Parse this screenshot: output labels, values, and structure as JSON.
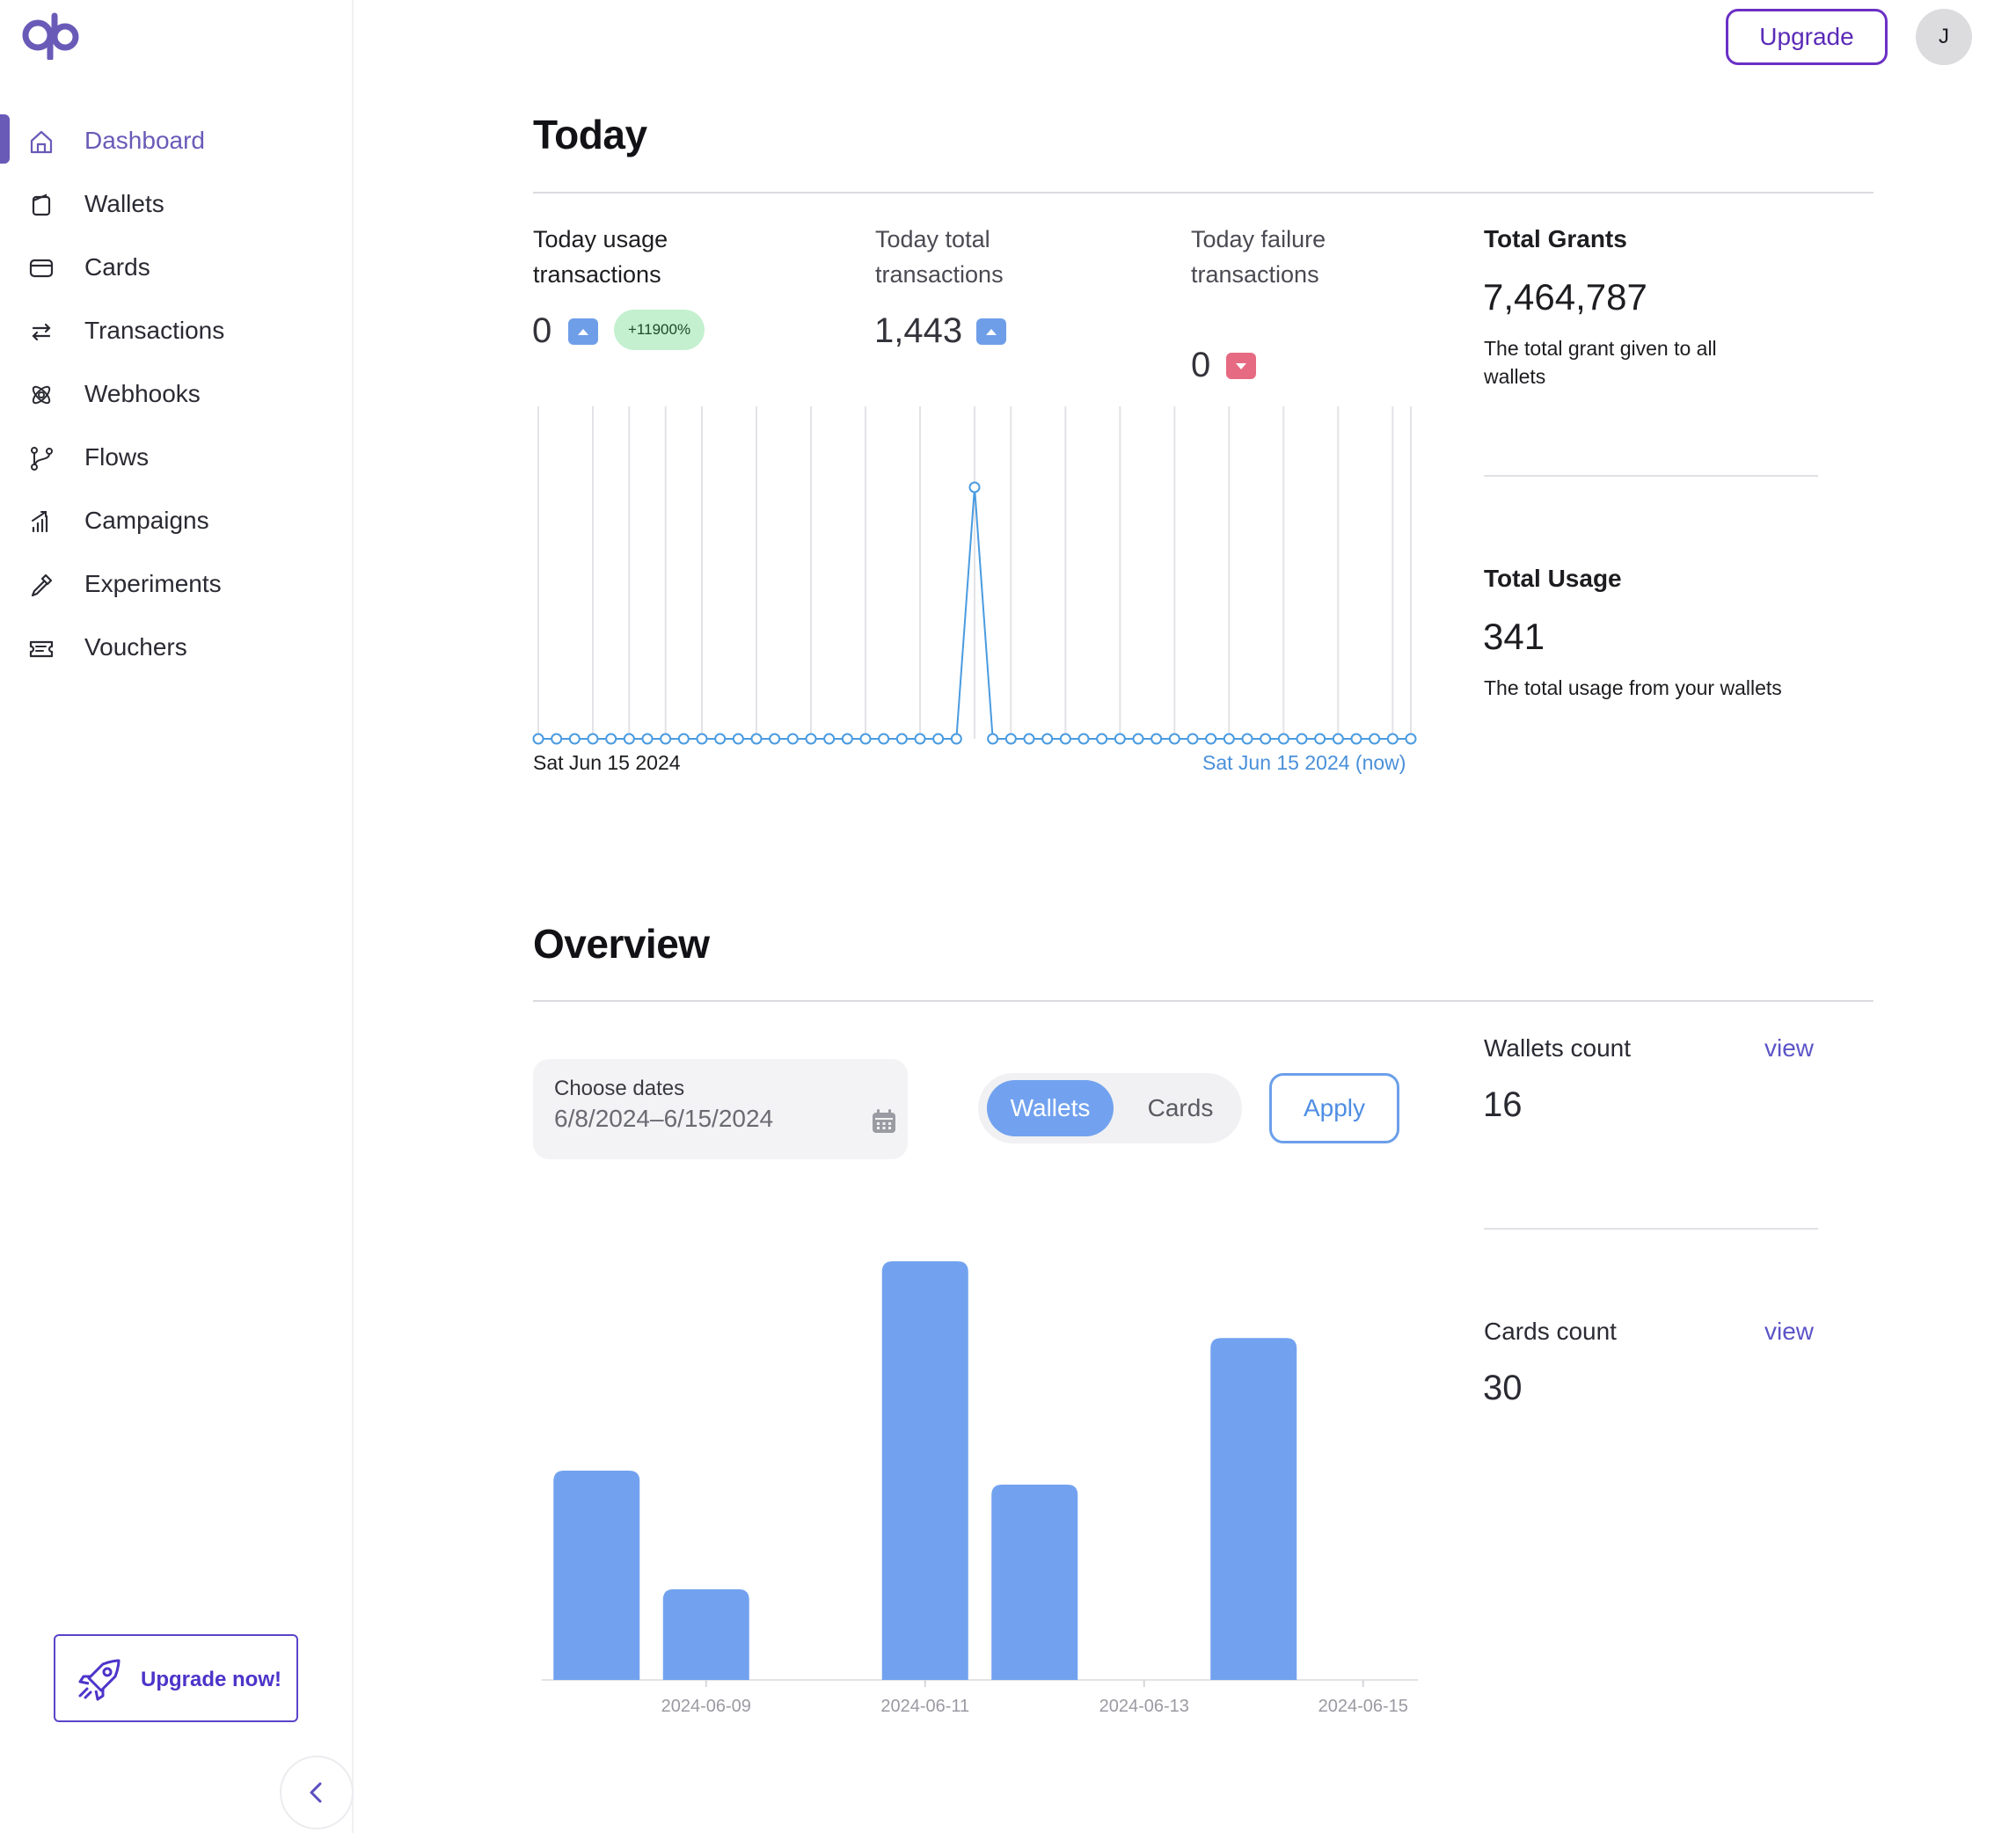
{
  "brand": {
    "logo_icon": "qb-logo-icon",
    "accent": "#6a5ab8"
  },
  "sidebar": {
    "items": [
      {
        "label": "Dashboard",
        "icon": "home-icon",
        "active": true
      },
      {
        "label": "Wallets",
        "icon": "wallet-icon"
      },
      {
        "label": "Cards",
        "icon": "card-icon"
      },
      {
        "label": "Transactions",
        "icon": "arrows-swap-icon"
      },
      {
        "label": "Webhooks",
        "icon": "webhook-icon"
      },
      {
        "label": "Flows",
        "icon": "git-branch-icon"
      },
      {
        "label": "Campaigns",
        "icon": "chart-bars-icon"
      },
      {
        "label": "Experiments",
        "icon": "pipette-icon"
      },
      {
        "label": "Vouchers",
        "icon": "ticket-icon"
      }
    ],
    "upgrade_now_label": "Upgrade now!",
    "collapse_icon": "chevron-left-icon"
  },
  "header": {
    "upgrade_label": "Upgrade",
    "avatar_initial": "J"
  },
  "today": {
    "title": "Today",
    "usage": {
      "label": "Today usage transactions",
      "value": "0",
      "trend": "up",
      "change": "+11900%"
    },
    "total": {
      "label": "Today total transactions",
      "value": "1,443",
      "trend": "up"
    },
    "failure": {
      "label": "Today failure transactions",
      "value": "0",
      "trend": "down"
    },
    "grants": {
      "title": "Total Grants",
      "value": "7,464,787",
      "desc": "The total grant given to all wallets"
    },
    "usage_total": {
      "title": "Total Usage",
      "value": "341",
      "desc": "The total usage from your wallets"
    },
    "axis_start": "Sat Jun 15 2024",
    "axis_end": "Sat Jun 15 2024 (now)"
  },
  "overview": {
    "title": "Overview",
    "date_picker": {
      "label": "Choose dates",
      "value": "6/8/2024–6/15/2024",
      "icon": "calendar-icon"
    },
    "toggle": {
      "wallets": "Wallets",
      "cards": "Cards",
      "selected": "Wallets"
    },
    "apply_label": "Apply",
    "wallets_count": {
      "label": "Wallets count",
      "link": "view",
      "value": "16"
    },
    "cards_count": {
      "label": "Cards count",
      "link": "view",
      "value": "30"
    }
  },
  "chart_data": [
    {
      "type": "line",
      "series": [
        {
          "values": [
            0,
            0,
            0,
            0,
            0,
            0,
            0,
            0,
            0,
            0,
            0,
            0,
            0,
            0,
            0,
            0,
            0,
            0,
            0,
            0,
            0,
            0,
            0,
            0,
            1,
            0,
            0,
            0,
            0,
            0,
            0,
            0,
            0,
            0,
            0,
            0,
            0,
            0,
            0,
            0,
            0,
            0,
            0,
            0,
            0,
            0,
            0,
            0,
            0
          ]
        }
      ],
      "x_start_label": "Sat Jun 15 2024",
      "x_end_label": "Sat Jun 15 2024 (now)",
      "grid": "vertical",
      "color": "#4a9be0"
    },
    {
      "type": "bar",
      "categories": [
        "2024-06-08",
        "2024-06-09",
        "2024-06-10",
        "2024-06-11",
        "2024-06-12",
        "2024-06-13",
        "2024-06-14",
        "2024-06-15"
      ],
      "tick_labels": [
        "2024-06-09",
        "2024-06-11",
        "2024-06-13",
        "2024-06-15"
      ],
      "values": [
        3,
        1.3,
        0,
        6,
        2.8,
        0,
        4.9,
        0
      ],
      "ylim": [
        0,
        6
      ],
      "color": "#72a2ef"
    }
  ]
}
